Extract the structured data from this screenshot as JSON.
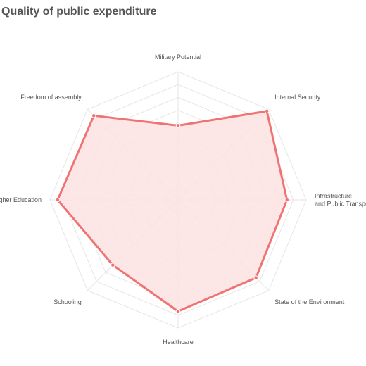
{
  "title": "Quality of public expenditure",
  "chart_data": {
    "type": "radar",
    "title": "Quality of public expenditure",
    "axes": [
      [
        "Military Potential"
      ],
      [
        "Internal Security"
      ],
      [
        "Infrastructure",
        "and Public Transport"
      ],
      [
        "State of the Environment"
      ],
      [
        "Healthcare"
      ],
      [
        "Schooling"
      ],
      [
        "Higher Education"
      ],
      [
        "Freedom of assembly"
      ]
    ],
    "scale": {
      "min": 0,
      "max": 100,
      "gridlines": 10
    },
    "series": [
      {
        "values": [
          58,
          98,
          85,
          86,
          87,
          72,
          94,
          93
        ]
      }
    ],
    "colors": {
      "stroke": "#f07373",
      "fill": "#fde2e2",
      "grid": "#e6e6e6"
    }
  }
}
